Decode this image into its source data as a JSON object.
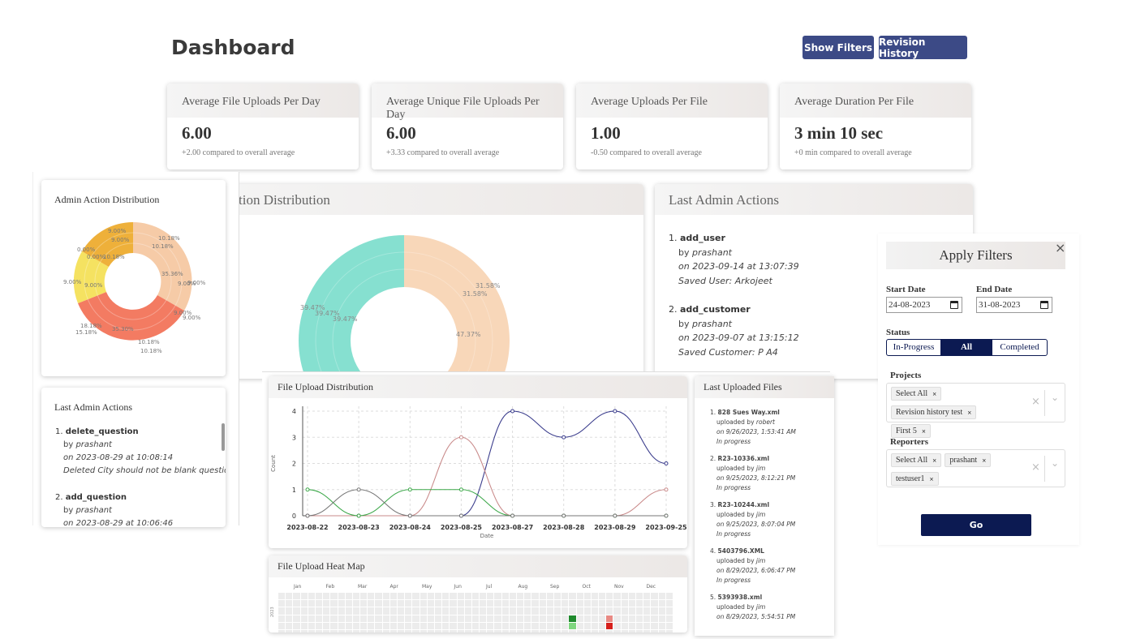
{
  "header": {
    "title": "Dashboard",
    "show_filters_label": "Show Filters",
    "revision_history_label": "Revision History"
  },
  "stats": [
    {
      "title": "Average File Uploads Per Day",
      "value": "6.00",
      "sub": "+2.00 compared to overall average"
    },
    {
      "title": "Average Unique File Uploads Per Day",
      "value": "6.00",
      "sub": "+3.33 compared to overall average"
    },
    {
      "title": "Average Uploads Per File",
      "value": "1.00",
      "sub": "-0.50 compared to overall average"
    },
    {
      "title": "Average Duration Per File",
      "value": "3 min 10 sec",
      "sub": "+0 min compared to overall average"
    }
  ],
  "main_distribution": {
    "title": "tion Distribution",
    "labels": [
      "39.47%",
      "39.47%",
      "39.47%",
      "31.58%",
      "31.58%",
      "47.37%"
    ]
  },
  "last_admin_actions_main": {
    "title": "Last Admin Actions",
    "items": [
      {
        "num": "1.",
        "action": "add_user",
        "by": "by ",
        "user": "prashant",
        "on": "on 2023-09-14 at 13:07:39",
        "detail": "Saved User: Arkojeet"
      },
      {
        "num": "2.",
        "action": "add_customer",
        "by": "by ",
        "user": "prashant",
        "on": "on 2023-09-07 at 13:15:12",
        "detail": "Saved Customer: P A4"
      }
    ]
  },
  "admin_action_distribution": {
    "title": "Admin Action Distribution",
    "colors": {
      "peach": "#f6cba7",
      "red": "#f37b62",
      "yellow": "#f5e261",
      "orange": "#eeb03a"
    },
    "labels": [
      "10.18%",
      "10.18%",
      "9.00%",
      "9.00%",
      "0.00%",
      "0.00%",
      "10.18%",
      "35.36%",
      "9.00%",
      "9.00%",
      "9.00%",
      "9.00%",
      "9.00%",
      "9.00%",
      "18.18%",
      "15.18%",
      "35.30%",
      "10.18%",
      "10.18%"
    ]
  },
  "last_admin_actions_side": {
    "title": "Last Admin Actions",
    "items": [
      {
        "num": "1.",
        "action": "delete_question",
        "by": "by ",
        "user": "prashant",
        "on": "on 2023-08-29 at 10:08:14",
        "detail": "Deleted City should not be blank question"
      },
      {
        "num": "2.",
        "action": "add_question",
        "by": "by ",
        "user": "prashant",
        "on": "on 2023-08-29 at 10:06:46"
      }
    ]
  },
  "file_upload_distribution": {
    "title": "File Upload Distribution",
    "chart_data": {
      "type": "line",
      "categories": [
        "2023-08-22",
        "2023-08-23",
        "2023-08-24",
        "2023-08-25",
        "2023-08-27",
        "2023-08-28",
        "2023-08-29",
        "2023-09-25"
      ],
      "xlabel": "Date",
      "ylabel": "Count",
      "ylim": [
        0,
        4
      ],
      "yticks": [
        "0",
        "1",
        "2",
        "3",
        "4"
      ],
      "grid": true,
      "series": [
        {
          "color": "#3a3c8c",
          "values": [
            0,
            0,
            0,
            0,
            4,
            3,
            4,
            2
          ]
        },
        {
          "color": "#c98a8a",
          "values": [
            0,
            0,
            0,
            3,
            0,
            0,
            0,
            1
          ]
        },
        {
          "color": "#3da84a",
          "values": [
            1,
            0,
            1,
            1,
            0,
            0,
            0,
            0
          ]
        },
        {
          "color": "#777777",
          "values": [
            0,
            1,
            0,
            0,
            0,
            0,
            0,
            0
          ]
        }
      ]
    }
  },
  "heat_map": {
    "title": "File Upload Heat Map",
    "months": [
      "Jan",
      "Feb",
      "Mar",
      "Apr",
      "May",
      "Jun",
      "Jul",
      "Aug",
      "Sep",
      "Oct",
      "Nov",
      "Dec"
    ],
    "year": "2023"
  },
  "last_uploaded_files": {
    "title": "Last Uploaded Files",
    "items": [
      {
        "num": "1.",
        "name": "828 Sues Way.xml",
        "by": "uploaded by ",
        "user": "robert",
        "on": "on 9/26/2023, 1:53:41 AM",
        "status": "In progress"
      },
      {
        "num": "2.",
        "name": "R23-10336.xml",
        "by": "uploaded by ",
        "user": "jim",
        "on": "on 9/25/2023, 8:12:21 PM",
        "status": "In progress"
      },
      {
        "num": "3.",
        "name": "R23-10244.xml",
        "by": "uploaded by ",
        "user": "jim",
        "on": "on 9/25/2023, 8:07:04 PM",
        "status": "In progress"
      },
      {
        "num": "4.",
        "name": "5403796.XML",
        "by": "uploaded by ",
        "user": "jim",
        "on": "on 8/29/2023, 6:06:47 PM",
        "status": "In progress"
      },
      {
        "num": "5.",
        "name": "5393938.xml",
        "by": "uploaded by ",
        "user": "jim",
        "on": "on 8/29/2023, 5:54:51 PM"
      }
    ]
  },
  "filters": {
    "title": "Apply Filters",
    "close_glyph": "×",
    "start_date_label": "Start Date",
    "start_date_value": "24-08-2023",
    "end_date_label": "End Date",
    "end_date_value": "31-08-2023",
    "status_label": "Status",
    "status_options": [
      "In-Progress",
      "All",
      "Completed"
    ],
    "projects_label": "Projects",
    "projects_chips": [
      "Select All",
      "Revision history test",
      "First 5"
    ],
    "reporters_label": "Reporters",
    "reporters_chips": [
      "Select All",
      "prashant",
      "testuser1"
    ],
    "chip_remove_glyph": "×",
    "clear_glyph": "×",
    "dropdown_glyph": "⌄",
    "go_label": "Go"
  }
}
